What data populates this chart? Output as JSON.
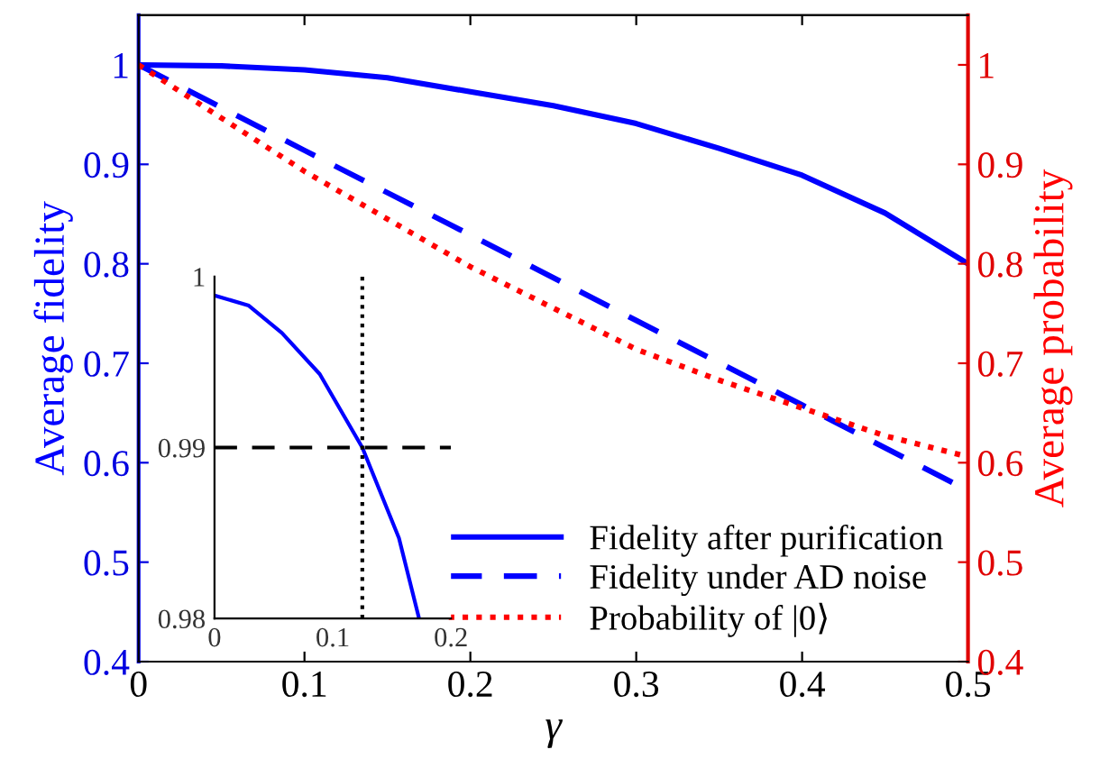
{
  "chart_data": [
    {
      "type": "line",
      "xlabel": "γ",
      "ylabel": "Average fidelity",
      "y2label": "Average probability",
      "xlim": [
        0,
        0.5
      ],
      "ylim": [
        0.4,
        1.05
      ],
      "y2lim": [
        0.4,
        1.05
      ],
      "xticks": [
        0,
        0.1,
        0.2,
        0.3,
        0.4,
        0.5
      ],
      "yticks": [
        0.4,
        0.5,
        0.6,
        0.7,
        0.8,
        0.9,
        1
      ],
      "y2ticks": [
        0.4,
        0.5,
        0.6,
        0.7,
        0.8,
        0.9,
        1
      ],
      "legend": "bottom right",
      "grid": false,
      "series": [
        {
          "name": "Fidelity after purification",
          "color": "#0000ff",
          "line_style": "solid",
          "axis": "y",
          "x": [
            0,
            0.05,
            0.1,
            0.15,
            0.2,
            0.25,
            0.3,
            0.35,
            0.4,
            0.45,
            0.5
          ],
          "values": [
            1,
            0.999,
            0.995,
            0.987,
            0.973,
            0.959,
            0.941,
            0.916,
            0.889,
            0.851,
            0.8
          ]
        },
        {
          "name": "Fidelity under AD noise",
          "color": "#0000ff",
          "line_style": "dashed",
          "axis": "y",
          "x": [
            0,
            0.1,
            0.2,
            0.3,
            0.4,
            0.5
          ],
          "values": [
            1,
            0.914,
            0.829,
            0.743,
            0.658,
            0.572
          ]
        },
        {
          "name": "Probability of |0⟩",
          "color": "#ff0000",
          "line_style": "dotted",
          "axis": "y2",
          "x": [
            0,
            0.1,
            0.2,
            0.3,
            0.35,
            0.4,
            0.45,
            0.5
          ],
          "values": [
            1,
            0.893,
            0.797,
            0.714,
            0.683,
            0.655,
            0.627,
            0.606
          ]
        }
      ]
    },
    {
      "type": "line",
      "xlim": [
        0,
        0.2
      ],
      "ylim": [
        0.98,
        1.0
      ],
      "xticks": [
        0,
        0.1,
        0.2
      ],
      "yticks": [
        0.98,
        0.99,
        1
      ],
      "series": [
        {
          "color": "#0000ff",
          "line_style": "solid",
          "x": [
            0,
            0.029,
            0.057,
            0.089,
            0.125,
            0.156,
            0.173
          ],
          "values": [
            0.9989,
            0.9983,
            0.9967,
            0.9943,
            0.99,
            0.9847,
            0.98
          ]
        }
      ],
      "ref_lines": [
        {
          "axis": "y",
          "value": 0.99,
          "color": "#000000",
          "line_style": "dashed"
        },
        {
          "axis": "x",
          "value": 0.125,
          "color": "#000000",
          "line_style": "dotted"
        }
      ]
    }
  ]
}
